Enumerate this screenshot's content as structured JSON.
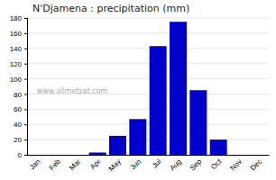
{
  "chart_data": {
    "type": "bar",
    "title": "N'Djamena : precipitation (mm)",
    "categories": [
      "Jan",
      "Feb",
      "Mar",
      "Apr",
      "May",
      "Jun",
      "Jul",
      "Aug",
      "Sep",
      "Oct",
      "Nov",
      "Dec"
    ],
    "values": [
      0,
      0,
      0,
      3,
      25,
      47,
      143,
      175,
      85,
      20,
      0,
      0
    ],
    "color": "#0000cc",
    "ylim": [
      0,
      180
    ],
    "yticks": [
      0,
      20,
      40,
      60,
      80,
      100,
      120,
      140,
      160,
      180
    ],
    "grid": true,
    "annotations": [
      "www.allmetsat.com"
    ]
  }
}
